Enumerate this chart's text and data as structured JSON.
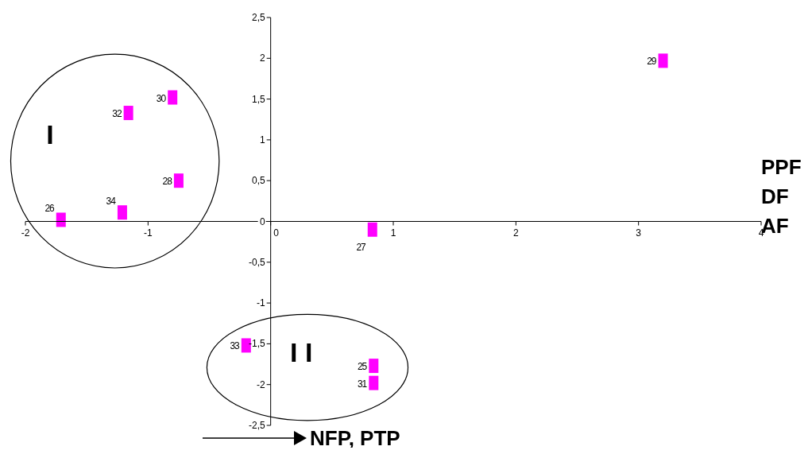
{
  "chart_data": {
    "type": "scatter",
    "xlabel": "NFP, PTP",
    "x": [
      3.2,
      -0.8,
      -1.16,
      -0.75,
      -1.21,
      -1.71,
      0.83,
      -0.2,
      0.84,
      0.84
    ],
    "series": [
      {
        "color": "#ff00ff",
        "values": [
          1.97,
          1.52,
          1.33,
          0.5,
          0.11,
          0.02,
          -0.1,
          -1.52,
          -1.77,
          -1.98
        ]
      }
    ],
    "annotations": [
      {
        "text": "29",
        "x": 3.2,
        "y": 1.97
      },
      {
        "text": "30",
        "x": -0.8,
        "y": 1.52
      },
      {
        "text": "32",
        "x": -1.16,
        "y": 1.33
      },
      {
        "text": "28",
        "x": -0.75,
        "y": 0.5
      },
      {
        "text": "34",
        "x": -1.21,
        "y": 0.11
      },
      {
        "text": "26",
        "x": -1.71,
        "y": 0.02
      },
      {
        "text": "27",
        "x": 0.83,
        "y": -0.1
      },
      {
        "text": "33",
        "x": -0.2,
        "y": -1.52
      },
      {
        "text": "25",
        "x": 0.84,
        "y": -1.77
      },
      {
        "text": "31",
        "x": 0.84,
        "y": -1.98
      },
      "I",
      "I I",
      "PPF",
      "DF",
      "AF"
    ],
    "xlim": [
      -2,
      4
    ],
    "xticks": [
      -2,
      -1,
      0,
      1,
      2,
      3,
      4
    ],
    "ylim": [
      -2.5,
      2.5
    ],
    "yticks": [
      {
        "value": -2.5,
        "label": "-2,5"
      },
      -2,
      {
        "value": -1.5,
        "label": "-1,5"
      },
      -1,
      {
        "value": -0.5,
        "label": "-0,5"
      },
      0,
      {
        "value": 0.5,
        "label": "0,5"
      },
      1,
      {
        "value": 1.5,
        "label": "1,5"
      },
      2,
      {
        "value": 2.5,
        "label": "2,5"
      }
    ],
    "grid": false,
    "legend": false,
    "marker": "square"
  }
}
